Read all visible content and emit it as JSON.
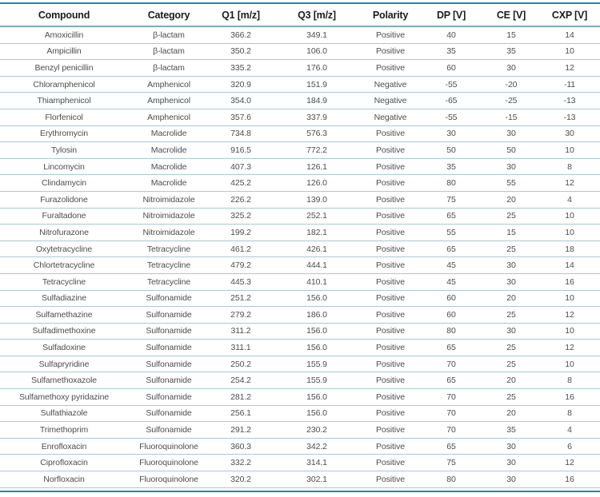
{
  "table": {
    "headers": [
      "Compound",
      "Category",
      "Q1 [m/z]",
      "Q3 [m/z]",
      "Polarity",
      "DP [V]",
      "CE [V]",
      "CXP [V]"
    ],
    "rows": [
      [
        "Amoxicillin",
        "β-lactam",
        "366.2",
        "349.1",
        "Positive",
        "40",
        "15",
        "14"
      ],
      [
        "Ampicillin",
        "β-lactam",
        "350.2",
        "106.0",
        "Positive",
        "35",
        "35",
        "10"
      ],
      [
        "Benzyl penicillin",
        "β-lactam",
        "335.2",
        "176.0",
        "Positive",
        "60",
        "30",
        "12"
      ],
      [
        "Chloramphenicol",
        "Amphenicol",
        "320.9",
        "151.9",
        "Negative",
        "-55",
        "-20",
        "-11"
      ],
      [
        "Thiamphenicol",
        "Amphenicol",
        "354.0",
        "184.9",
        "Negative",
        "-65",
        "-25",
        "-13"
      ],
      [
        "Florfenicol",
        "Amphenicol",
        "357.6",
        "337.9",
        "Negative",
        "-55",
        "-15",
        "-13"
      ],
      [
        "Erythromycin",
        "Macrolide",
        "734.8",
        "576.3",
        "Positive",
        "30",
        "30",
        "30"
      ],
      [
        "Tylosin",
        "Macrolide",
        "916.5",
        "772.2",
        "Positive",
        "50",
        "50",
        "10"
      ],
      [
        "Lincomycin",
        "Macrolide",
        "407.3",
        "126.1",
        "Positive",
        "35",
        "30",
        "8"
      ],
      [
        "Clindamycin",
        "Macrolide",
        "425.2",
        "126.0",
        "Positive",
        "80",
        "55",
        "12"
      ],
      [
        "Furazolidone",
        "Nitroimidazole",
        "226.2",
        "139.0",
        "Positive",
        "75",
        "20",
        "4"
      ],
      [
        "Furaltadone",
        "Nitroimidazole",
        "325.2",
        "252.1",
        "Positive",
        "65",
        "25",
        "10"
      ],
      [
        "Nitrofurazone",
        "Nitroimidazole",
        "199.2",
        "182.1",
        "Positive",
        "55",
        "15",
        "10"
      ],
      [
        "Oxytetracycline",
        "Tetracycline",
        "461.2",
        "426.1",
        "Positive",
        "65",
        "25",
        "18"
      ],
      [
        "Chlortetracycline",
        "Tetracycline",
        "479.2",
        "444.1",
        "Positive",
        "45",
        "30",
        "14"
      ],
      [
        "Tetracycline",
        "Tetracycline",
        "445.3",
        "410.1",
        "Positive",
        "45",
        "30",
        "16"
      ],
      [
        "Sulfadiazine",
        "Sulfonamide",
        "251.2",
        "156.0",
        "Positive",
        "60",
        "20",
        "10"
      ],
      [
        "Sulfamethazine",
        "Sulfonamide",
        "279.2",
        "186.0",
        "Positive",
        "60",
        "25",
        "12"
      ],
      [
        "Sulfadimethoxine",
        "Sulfonamide",
        "311.2",
        "156.0",
        "Positive",
        "80",
        "30",
        "10"
      ],
      [
        "Sulfadoxine",
        "Sulfonamide",
        "311.1",
        "156.0",
        "Positive",
        "65",
        "25",
        "12"
      ],
      [
        "Sulfapryridine",
        "Sulfonamide",
        "250.2",
        "155.9",
        "Positive",
        "70",
        "25",
        "10"
      ],
      [
        "Sulfamethoxazole",
        "Sulfonamide",
        "254.2",
        "155.9",
        "Positive",
        "65",
        "20",
        "8"
      ],
      [
        "Sulfamethoxy pyridazine",
        "Sulfonamide",
        "281.2",
        "156.0",
        "Positive",
        "70",
        "25",
        "16"
      ],
      [
        "Sulfathiazole",
        "Sulfonamide",
        "256.1",
        "156.0",
        "Positive",
        "70",
        "20",
        "8"
      ],
      [
        "Trimethoprim",
        "Sulfonamide",
        "291.2",
        "230.2",
        "Positive",
        "70",
        "35",
        "4"
      ],
      [
        "Enrofloxacin",
        "Fluoroquinolone",
        "360.3",
        "342.2",
        "Positive",
        "65",
        "30",
        "6"
      ],
      [
        "Ciprofloxacin",
        "Fluoroquinolone",
        "332.2",
        "314.1",
        "Positive",
        "75",
        "30",
        "12"
      ],
      [
        "Norfloxacin",
        "Fluoroquinolone",
        "320.2",
        "302.1",
        "Positive",
        "80",
        "30",
        "16"
      ]
    ],
    "column_keys": [
      "compound",
      "category",
      "q1",
      "q3",
      "polarity",
      "dp",
      "ce",
      "cxp"
    ]
  },
  "colors": {
    "outer_rule": "#1f86ae",
    "header_rule": "#7fa9c3",
    "row_rule": "#a9c8da",
    "header_text": "#1c1c1c",
    "body_text": "#4d4d4d"
  }
}
